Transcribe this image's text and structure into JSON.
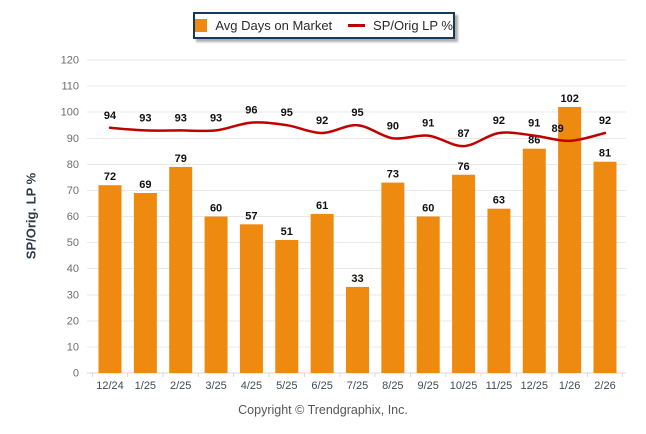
{
  "legend": {
    "bar_label": "Avg Days on Market",
    "line_label": "SP/Orig LP %"
  },
  "y_axis_title": "SP/Orig. LP %",
  "footer": {
    "copyright": "Copyright © Trendgraphix, Inc."
  },
  "colors": {
    "bar": "#ee8a10",
    "line": "#c00000",
    "grid": "#e8e8e8",
    "baseline": "#d9d9d9",
    "tick_label": "#6e6e6e",
    "x_label": "#3f4b58",
    "data_label": "#111111",
    "legend_border": "#17375d"
  },
  "chart_data": {
    "type": "bar+line",
    "categories": [
      "12/24",
      "1/25",
      "2/25",
      "3/25",
      "4/25",
      "5/25",
      "6/25",
      "7/25",
      "8/25",
      "9/25",
      "10/25",
      "11/25",
      "12/25",
      "1/26",
      "2/26"
    ],
    "series": [
      {
        "name": "Avg Days on Market",
        "type": "bar",
        "values": [
          72,
          69,
          79,
          60,
          57,
          51,
          61,
          33,
          73,
          60,
          76,
          63,
          86,
          102,
          81
        ]
      },
      {
        "name": "SP/Orig LP %",
        "type": "line",
        "values": [
          94,
          93,
          93,
          93,
          96,
          95,
          92,
          95,
          90,
          91,
          87,
          92,
          91,
          89,
          92
        ]
      }
    ],
    "title": "",
    "xlabel": "",
    "ylabel": "SP/Orig. LP %",
    "ylim": [
      0,
      120
    ],
    "ytick_step": 10,
    "grid": true,
    "legend_position": "top-center"
  }
}
